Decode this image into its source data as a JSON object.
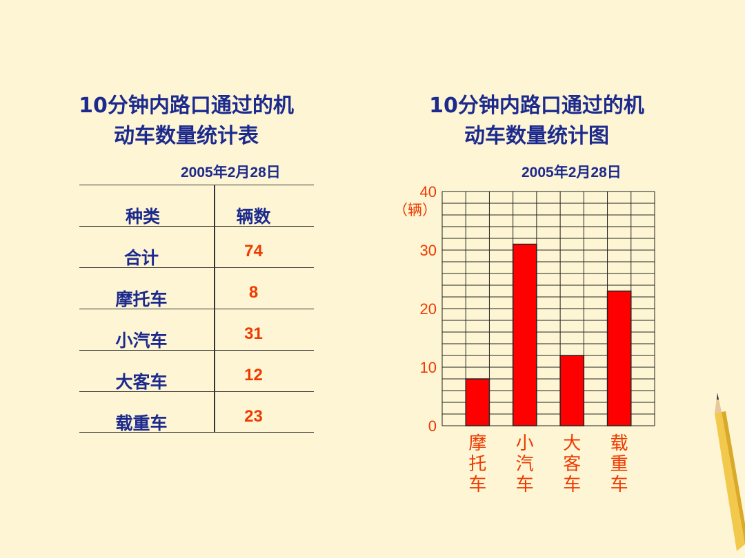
{
  "table": {
    "title_line1": "10分钟内路口通过的机",
    "title_line2": "动车数量统计表",
    "date": "2005年2月28日",
    "header_name": "种类",
    "header_value": "辆数",
    "rows": [
      {
        "name": "合计",
        "value": "74"
      },
      {
        "name": "摩托车",
        "value": "8"
      },
      {
        "name": "小汽车",
        "value": "31"
      },
      {
        "name": "大客车",
        "value": "12"
      },
      {
        "name": "载重车",
        "value": "23"
      }
    ]
  },
  "chart": {
    "title_line1": "10分钟内路口通过的机",
    "title_line2": "动车数量统计图",
    "date": "2005年2月28日",
    "unit_label": "（辆）"
  },
  "chart_data": {
    "type": "bar",
    "categories": [
      "摩托车",
      "小汽车",
      "大客车",
      "载重车"
    ],
    "values": [
      8,
      31,
      12,
      23
    ],
    "ylim": [
      0,
      40
    ],
    "yticks": [
      "0",
      "10",
      "20",
      "30",
      "40"
    ],
    "ylabel": "（辆）",
    "grid": true,
    "grid_step": 2,
    "bar_color": "#ff0000",
    "label_color": "#ee3a00"
  },
  "colors": {
    "background": "#fdf5d3",
    "title": "#1c2a8e",
    "value": "#ee3a00"
  }
}
